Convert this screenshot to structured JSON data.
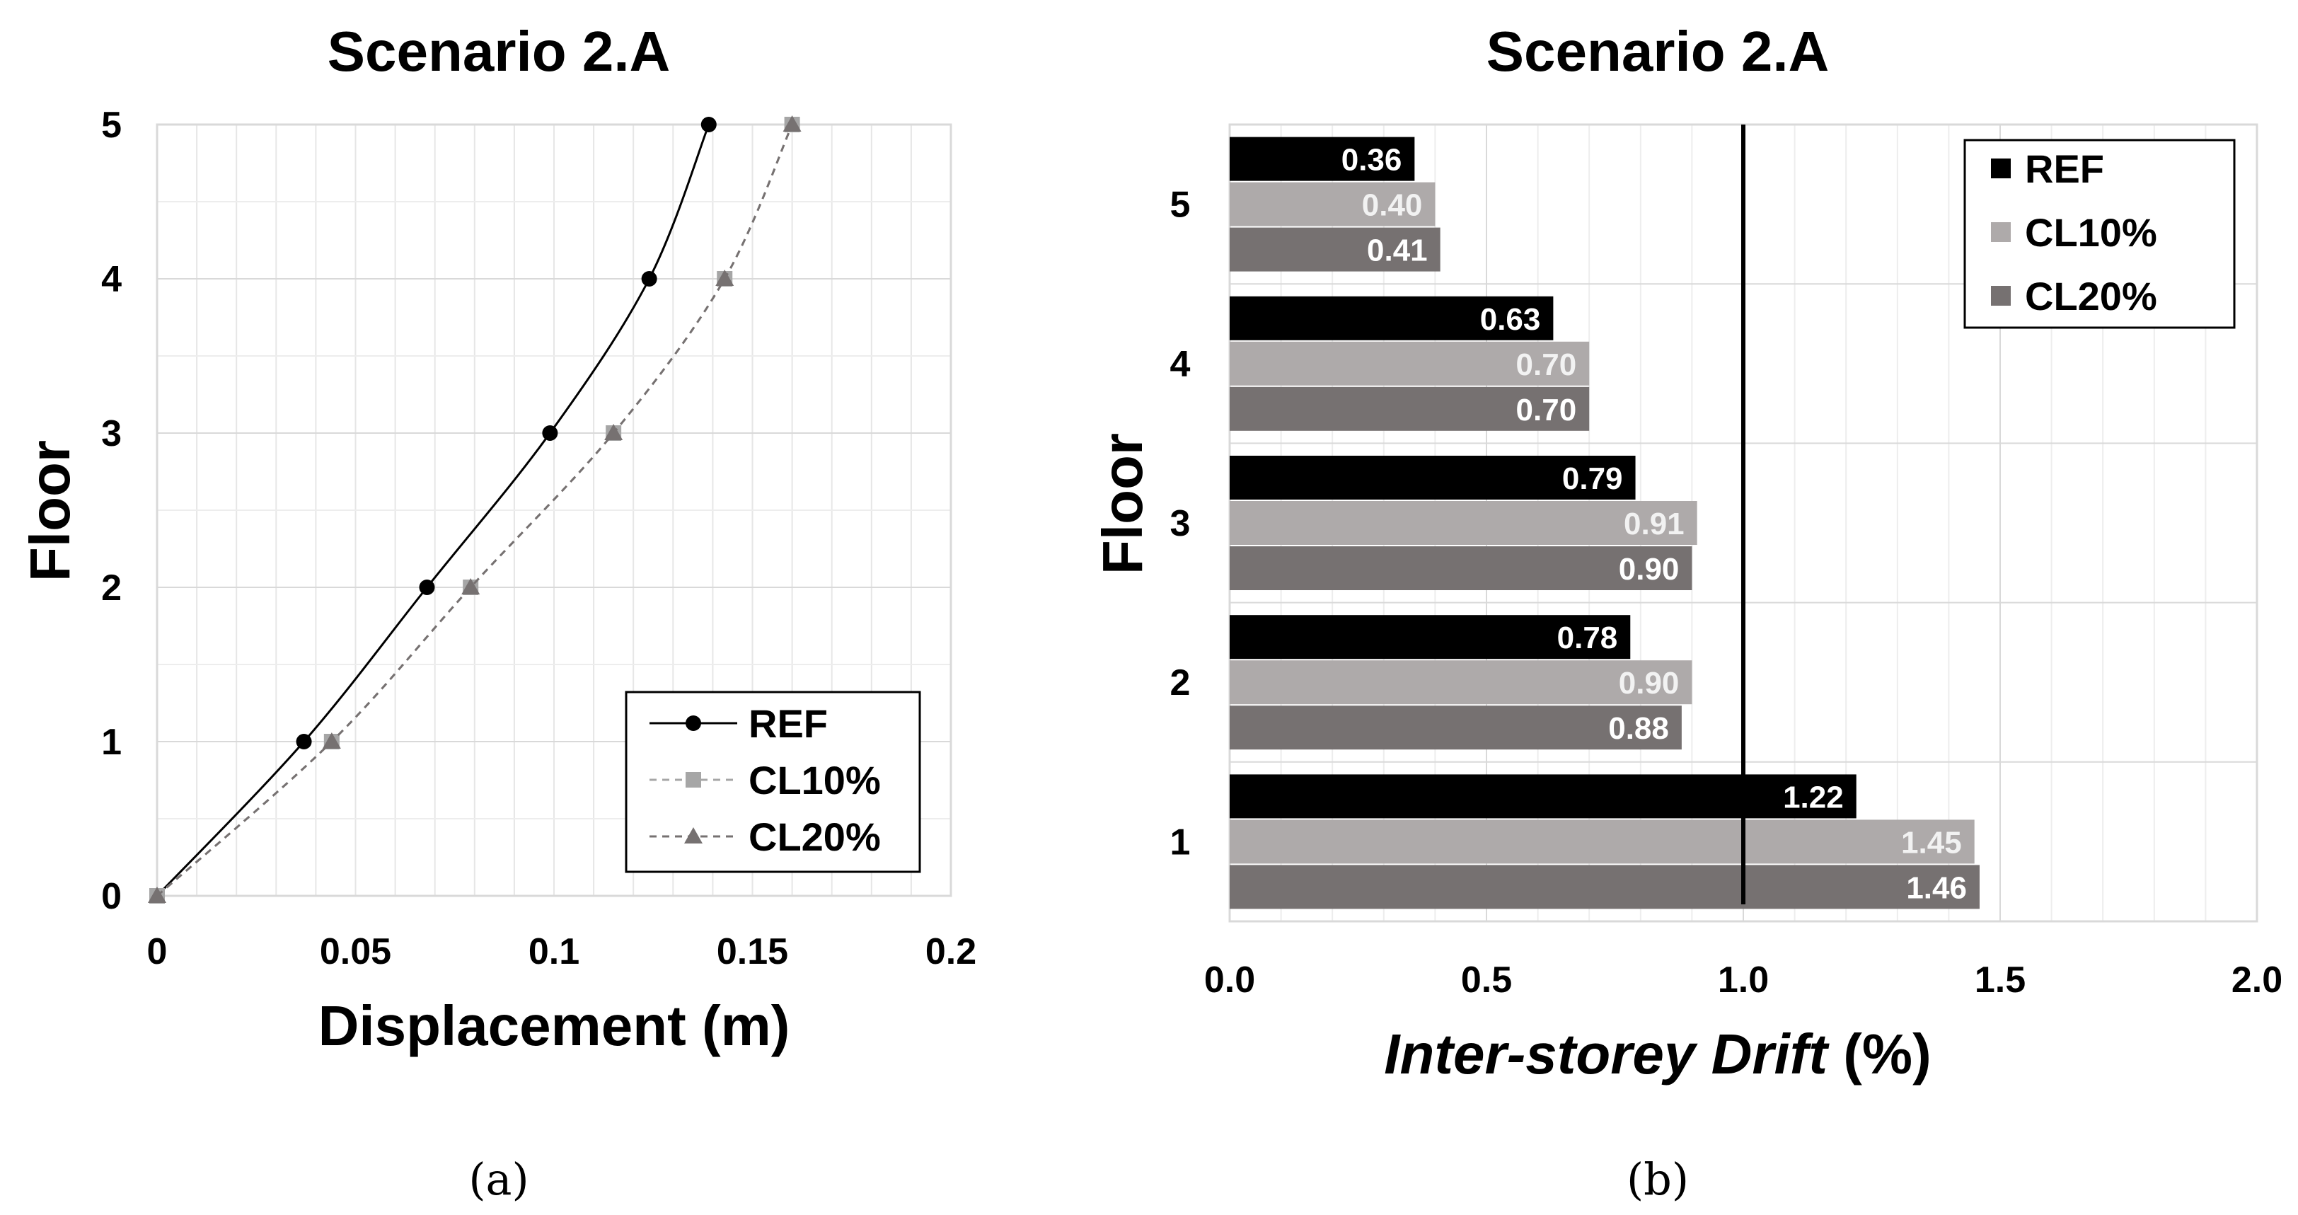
{
  "chart_data": [
    {
      "type": "line",
      "panel_label": "(a)",
      "title": "Scenario 2.A",
      "xlabel": "Displacement (m)",
      "ylabel": "Floor",
      "xlim": [
        0,
        0.2
      ],
      "ylim": [
        0,
        5
      ],
      "xticks": [
        0,
        0.05,
        0.1,
        0.15,
        0.2
      ],
      "xtick_labels": [
        "0",
        "0.05",
        "0.1",
        "0.15",
        "0.2"
      ],
      "yticks": [
        0,
        1,
        2,
        3,
        4,
        5
      ],
      "ytick_labels": [
        "0",
        "1",
        "2",
        "3",
        "4",
        "5"
      ],
      "grid": true,
      "legend_position": "bottom-right",
      "series": [
        {
          "name": "REF",
          "color": "#000000",
          "dashed": false,
          "marker": "circle",
          "x": [
            0,
            0.037,
            0.068,
            0.099,
            0.124,
            0.139
          ],
          "y": [
            0,
            1,
            2,
            3,
            4,
            5
          ]
        },
        {
          "name": "CL10%",
          "color": "#a6a6a6",
          "dashed": true,
          "marker": "square",
          "x": [
            0,
            0.044,
            0.079,
            0.115,
            0.143,
            0.16
          ],
          "y": [
            0,
            1,
            2,
            3,
            4,
            5
          ]
        },
        {
          "name": "CL20%",
          "color": "#767171",
          "dashed": true,
          "marker": "triangle",
          "x": [
            0,
            0.044,
            0.079,
            0.115,
            0.143,
            0.16
          ],
          "y": [
            0,
            1,
            2,
            3,
            4,
            5
          ]
        }
      ]
    },
    {
      "type": "bar",
      "orientation": "horizontal",
      "panel_label": "(b)",
      "title": "Scenario 2.A",
      "xlabel_italic": "Inter-storey Drift",
      "xlabel_unit": " (%)",
      "ylabel": "Floor",
      "xlim": [
        0,
        2.0
      ],
      "xticks": [
        0,
        0.5,
        1.0,
        1.5,
        2.0
      ],
      "xtick_labels": [
        "0.0",
        "0.5",
        "1.0",
        "1.5",
        "2.0"
      ],
      "categories": [
        "1",
        "2",
        "3",
        "4",
        "5"
      ],
      "limit_line": 1.0,
      "grid": true,
      "legend_position": "top-right",
      "series": [
        {
          "name": "REF",
          "color": "#000000",
          "label_color": "#ffffff",
          "values": [
            1.22,
            0.78,
            0.79,
            0.63,
            0.36
          ],
          "labels": [
            "1.22",
            "0.78",
            "0.79",
            "0.63",
            "0.36"
          ]
        },
        {
          "name": "CL10%",
          "color": "#aeaaaa",
          "label_color": "#f2f2f2",
          "values": [
            1.45,
            0.9,
            0.91,
            0.7,
            0.4
          ],
          "labels": [
            "1.45",
            "0.90",
            "0.91",
            "0.70",
            "0.40"
          ]
        },
        {
          "name": "CL20%",
          "color": "#767171",
          "label_color": "#ffffff",
          "values": [
            1.46,
            0.88,
            0.9,
            0.7,
            0.41
          ],
          "labels": [
            "1.46",
            "0.88",
            "0.90",
            "0.70",
            "0.41"
          ]
        }
      ]
    }
  ]
}
